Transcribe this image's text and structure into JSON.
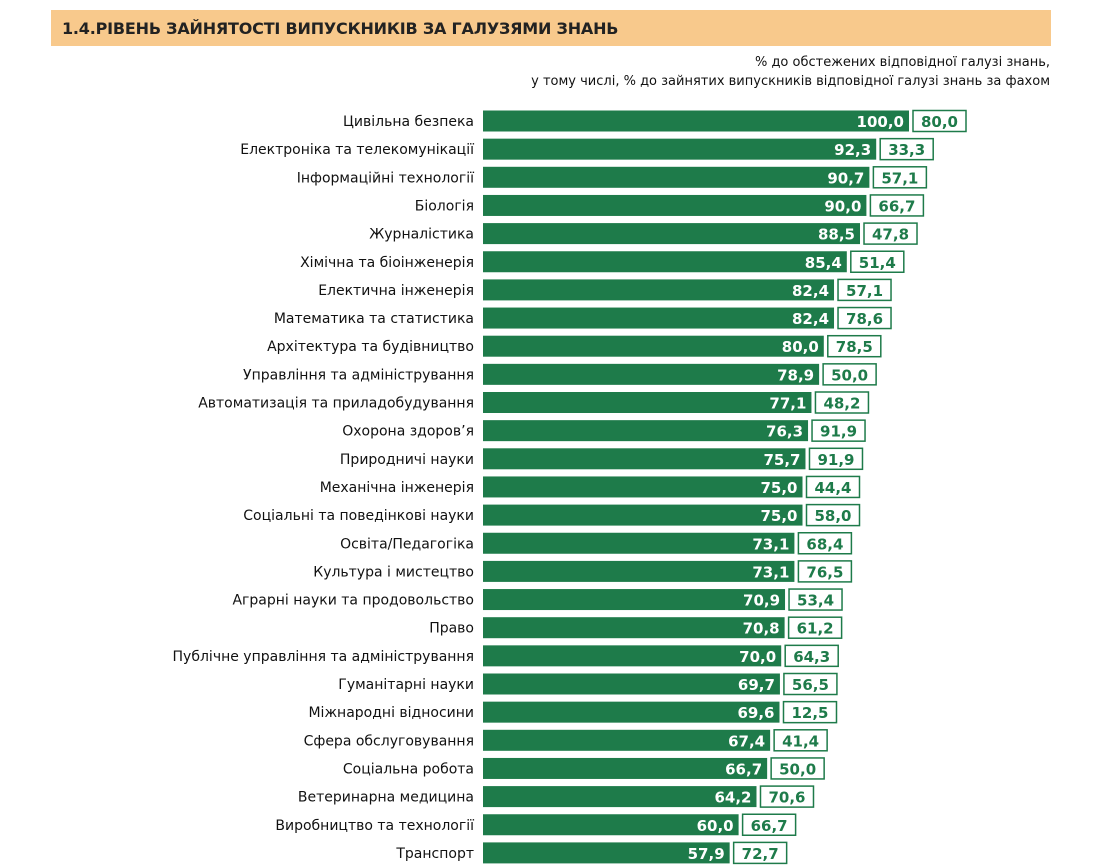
{
  "header": {
    "title": "1.4.РІВЕНЬ ЗАЙНЯТОСТІ ВИПУСКНИКІВ ЗА ГАЛУЗЯМИ ЗНАНЬ",
    "subtitle_line1": "% до обстежених відповідної галузі знань,",
    "subtitle_line2": "у тому числі, % до зайнятих випускників відповідної галузі знань за фахом"
  },
  "colors": {
    "bar": "#1e7b4a",
    "title_bg": "#f8c98c",
    "secondary_box_border": "#1e7b4a"
  },
  "chart_data": {
    "type": "bar",
    "orientation": "horizontal",
    "title": "1.4.РІВЕНЬ ЗАЙНЯТОСТІ ВИПУСКНИКІВ ЗА ГАЛУЗЯМИ ЗНАНЬ",
    "xlim": [
      0,
      100
    ],
    "grid": false,
    "legend": "none",
    "categories": [
      "Цивільна безпека",
      "Електроніка та телекомунікації",
      "Інформаційні технології",
      "Біологія",
      "Журналістика",
      "Хімічна та біоінженерія",
      "Електична інженерія",
      "Математика та статистика",
      "Архітектура та будівництво",
      "Управління та адміністрування",
      "Автоматизація та приладобудування",
      "Охорона здоров’я",
      "Природничі науки",
      "Механічна інженерія",
      "Соціальні та поведінкові науки",
      "Освіта/Педагогіка",
      "Культура і мистецтво",
      "Аграрні науки та продовольство",
      "Право",
      "Публічне управління та адміністрування",
      "Гуманітарні науки",
      "Міжнародні відносини",
      "Сфера обслуговування",
      "Соціальна робота",
      "Ветеринарна медицина",
      "Виробництво та технології",
      "Транспорт"
    ],
    "series": [
      {
        "values": [
          100.0,
          92.3,
          90.7,
          90.0,
          88.5,
          85.4,
          82.4,
          82.4,
          80.0,
          78.9,
          77.1,
          76.3,
          75.7,
          75.0,
          75.0,
          73.1,
          73.1,
          70.9,
          70.8,
          70.0,
          69.7,
          69.6,
          67.4,
          66.7,
          64.2,
          60.0,
          57.9
        ],
        "labels": [
          "100,0",
          "92,3",
          "90,7",
          "90,0",
          "88,5",
          "85,4",
          "82,4",
          "82,4",
          "80,0",
          "78,9",
          "77,1",
          "76,3",
          "75,7",
          "75,0",
          "75,0",
          "73,1",
          "73,1",
          "70,9",
          "70,8",
          "70,0",
          "69,7",
          "69,6",
          "67,4",
          "66,7",
          "64,2",
          "60,0",
          "57,9"
        ]
      },
      {
        "values": [
          80.0,
          33.3,
          57.1,
          66.7,
          47.8,
          51.4,
          57.1,
          78.6,
          78.5,
          50.0,
          48.2,
          91.9,
          91.9,
          44.4,
          58.0,
          68.4,
          76.5,
          53.4,
          61.2,
          64.3,
          56.5,
          12.5,
          41.4,
          50.0,
          70.6,
          66.7,
          72.7
        ],
        "labels": [
          "80,0",
          "33,3",
          "57,1",
          "66,7",
          "47,8",
          "51,4",
          "57,1",
          "78,6",
          "78,5",
          "50,0",
          "48,2",
          "91,9",
          "91,9",
          "44,4",
          "58,0",
          "68,4",
          "76,5",
          "53,4",
          "61,2",
          "64,3",
          "56,5",
          "12,5",
          "41,4",
          "50,0",
          "70,6",
          "66,7",
          "72,7"
        ]
      }
    ]
  }
}
